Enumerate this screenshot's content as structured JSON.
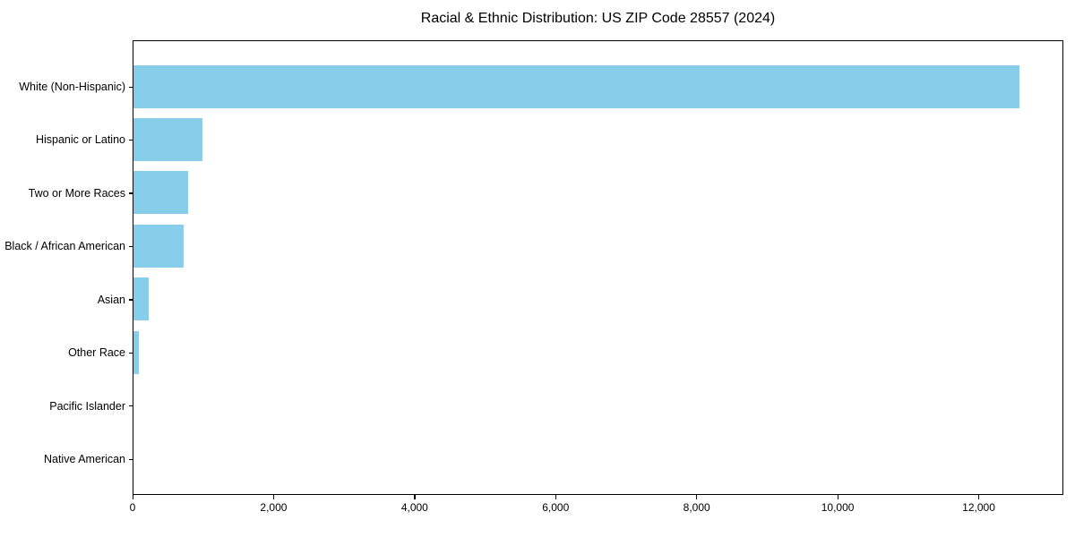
{
  "title": "Racial & Ethnic Distribution: US ZIP Code 28557 (2024)",
  "chart_data": {
    "type": "bar",
    "orientation": "horizontal",
    "title": "Racial & Ethnic Distribution: US ZIP Code 28557 (2024)",
    "xlabel": "",
    "ylabel": "",
    "categories": [
      "White (Non-Hispanic)",
      "Hispanic or Latino",
      "Two or More Races",
      "Black / African American",
      "Asian",
      "Other Race",
      "Pacific Islander",
      "Native American"
    ],
    "values": [
      12570,
      980,
      775,
      710,
      215,
      75,
      0,
      0
    ],
    "xlim": [
      0,
      13200
    ],
    "xticks": [
      0,
      2000,
      4000,
      6000,
      8000,
      10000,
      12000
    ],
    "xtick_labels": [
      "0",
      "2,000",
      "4,000",
      "6,000",
      "8,000",
      "10,000",
      "12,000"
    ],
    "bar_color": "#87CEEB",
    "grid": false,
    "legend": null
  }
}
